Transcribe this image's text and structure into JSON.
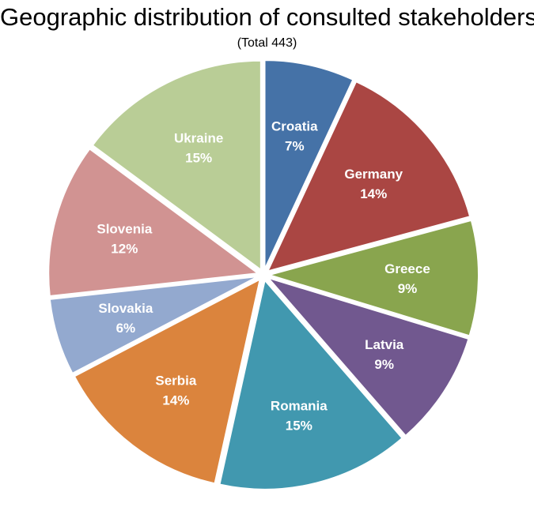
{
  "chart_data": {
    "type": "pie",
    "title": "Geographic distribution of consulted stakeholders",
    "subtitle": "(Total 443)",
    "slices": [
      {
        "label": "Croatia",
        "value": 7,
        "value_label": "7%",
        "color": "#4572A7"
      },
      {
        "label": "Germany",
        "value": 14,
        "value_label": "14%",
        "color": "#AA4643"
      },
      {
        "label": "Greece",
        "value": 9,
        "value_label": "9%",
        "color": "#89A54E"
      },
      {
        "label": "Latvia",
        "value": 9,
        "value_label": "9%",
        "color": "#71588F"
      },
      {
        "label": "Romania",
        "value": 15,
        "value_label": "15%",
        "color": "#4198AF"
      },
      {
        "label": "Serbia",
        "value": 14,
        "value_label": "14%",
        "color": "#DB843D"
      },
      {
        "label": "Slovakia",
        "value": 6,
        "value_label": "6%",
        "color": "#93A9CF"
      },
      {
        "label": "Slovenia",
        "value": 12,
        "value_label": "12%",
        "color": "#D19392"
      },
      {
        "label": "Ukraine",
        "value": 15,
        "value_label": "15%",
        "color": "#B9CD96"
      }
    ]
  }
}
